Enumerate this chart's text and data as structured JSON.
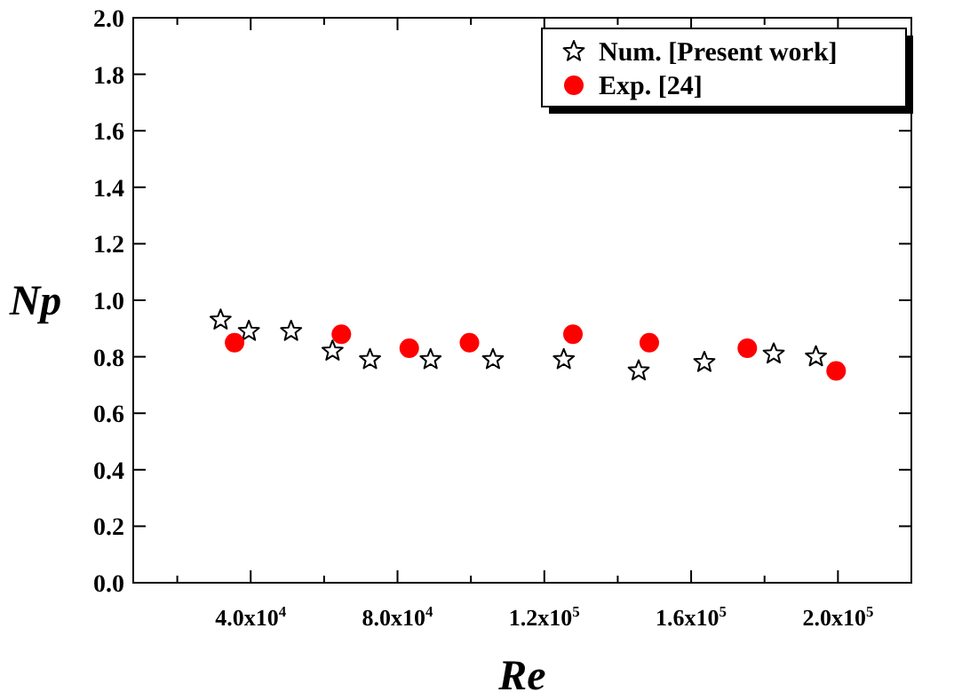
{
  "chart_data": {
    "type": "scatter",
    "xlabel": "Re",
    "ylabel": "Np",
    "xlim": [
      8000,
      220000
    ],
    "ylim": [
      0,
      2
    ],
    "xticks": [
      {
        "value": 20000,
        "label": null
      },
      {
        "value": 40000,
        "label": "4.0x10$^{4}$"
      },
      {
        "value": 60000,
        "label": null
      },
      {
        "value": 80000,
        "label": "8.0x10$^{4}$"
      },
      {
        "value": 100000,
        "label": null
      },
      {
        "value": 120000,
        "label": "1.2x10$^{5}$"
      },
      {
        "value": 140000,
        "label": null
      },
      {
        "value": 160000,
        "label": "1.6x10$^{5}$"
      },
      {
        "value": 180000,
        "label": null
      },
      {
        "value": 200000,
        "label": "2.0x10$^{5}$"
      }
    ],
    "yticks": [
      {
        "value": 0,
        "label": "0.0"
      },
      {
        "value": 0.2,
        "label": "0.2"
      },
      {
        "value": 0.4,
        "label": "0.4"
      },
      {
        "value": 0.6,
        "label": "0.6"
      },
      {
        "value": 0.8,
        "label": "0.8"
      },
      {
        "value": 1,
        "label": "1.0"
      },
      {
        "value": 1.2,
        "label": "1.2"
      },
      {
        "value": 1.4,
        "label": "1.4"
      },
      {
        "value": 1.6,
        "label": "1.6"
      },
      {
        "value": 1.8,
        "label": "1.8"
      },
      {
        "value": 2,
        "label": "2.0"
      }
    ],
    "legend": "top right",
    "grid": false,
    "series": [
      {
        "name": "Num. [Present work]",
        "color": "#000000",
        "marker": "star",
        "x": [
          31800,
          39500,
          51000,
          62300,
          72500,
          89000,
          106000,
          125300,
          145700,
          163600,
          182500,
          194000
        ],
        "values": [
          0.93,
          0.89,
          0.89,
          0.82,
          0.79,
          0.79,
          0.79,
          0.79,
          0.75,
          0.78,
          0.81,
          0.8
        ]
      },
      {
        "name": "Exp. [24]",
        "color": "#ff0000",
        "marker": "circle",
        "x": [
          35600,
          64700,
          83200,
          99600,
          127800,
          148600,
          175300,
          199500
        ],
        "values": [
          0.85,
          0.88,
          0.83,
          0.85,
          0.88,
          0.85,
          0.83,
          0.75
        ]
      }
    ]
  }
}
